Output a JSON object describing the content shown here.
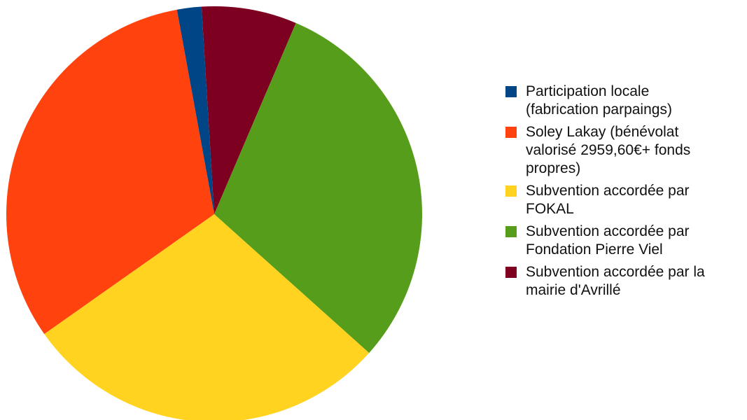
{
  "chart_data": {
    "type": "pie",
    "start_angle_deg": -3.5,
    "direction": "clockwise",
    "legend_position": "right",
    "series": [
      {
        "name": "Subvention accordée par la\nmairie d'Avrillé",
        "value": 7.4,
        "color": "#7E0021"
      },
      {
        "name": "Subvention accordée par\nFondation Pierre Viel",
        "value": 30.2,
        "color": "#579D1C"
      },
      {
        "name": "Subvention accordée par\nFOKAL",
        "value": 28.6,
        "color": "#FFD320"
      },
      {
        "name": "Soley Lakay (bénévolat\nvalorisé 2959,60€+ fonds\npropres)",
        "value": 31.9,
        "color": "#FF420E"
      },
      {
        "name": "Participation locale\n(fabrication parpaings)",
        "value": 1.9,
        "color": "#004586"
      }
    ],
    "legend_order": [
      4,
      3,
      2,
      1,
      0
    ]
  }
}
